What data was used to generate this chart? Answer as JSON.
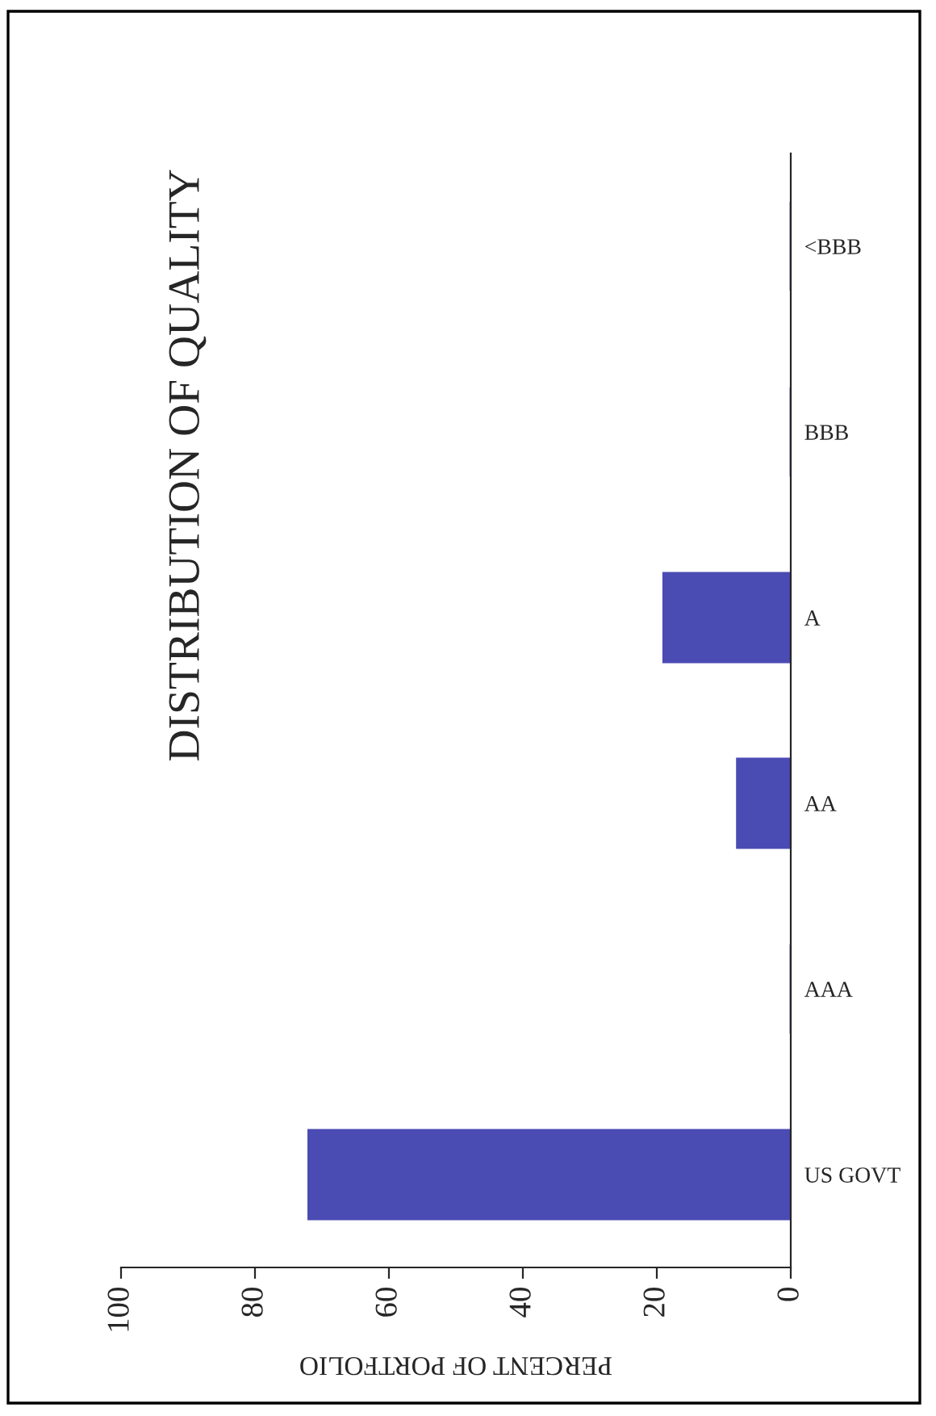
{
  "chart_data": {
    "type": "bar",
    "orientation": "horizontal",
    "title": "DISTRIBUTION OF QUALITY",
    "xlabel": "PERCENT OF PORTFOLIO",
    "categories": [
      "<BBB",
      "BBB",
      "A",
      "AA",
      "AAA",
      "US GOVT"
    ],
    "values": [
      0,
      0,
      19,
      8,
      0,
      72
    ],
    "color": "#4b4bb4",
    "xlim": [
      100,
      0
    ],
    "xticks": [
      100,
      80,
      60,
      40,
      20,
      0
    ],
    "grid": false,
    "legend": false
  }
}
